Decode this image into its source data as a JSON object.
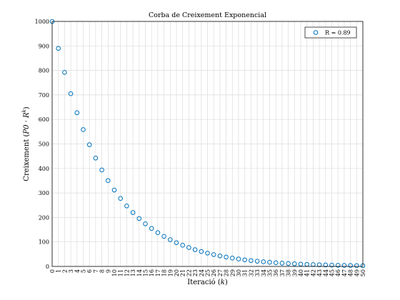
{
  "chart_data": {
    "type": "scatter",
    "title": "Corba de Creixement Exponencial",
    "xlabel_text": "Iteració ",
    "xlabel_var": "k",
    "ylabel_text": "Creixement ",
    "ylabel_formula": "P0 · R",
    "ylabel_sup": "k",
    "xlim": [
      0,
      50
    ],
    "ylim": [
      0,
      1000
    ],
    "yticks": [
      0,
      100,
      200,
      300,
      400,
      500,
      600,
      700,
      800,
      900,
      1000
    ],
    "xtick_step": 1,
    "grid": true,
    "legend": {
      "position": "top-right",
      "label": "R = 0.89"
    },
    "marker": "open-circle",
    "marker_color": "#0072bd",
    "x": [
      0,
      1,
      2,
      3,
      4,
      5,
      6,
      7,
      8,
      9,
      10,
      11,
      12,
      13,
      14,
      15,
      16,
      17,
      18,
      19,
      20,
      21,
      22,
      23,
      24,
      25,
      26,
      27,
      28,
      29,
      30,
      31,
      32,
      33,
      34,
      35,
      36,
      37,
      38,
      39,
      40,
      41,
      42,
      43,
      44,
      45,
      46,
      47,
      48,
      49,
      50
    ],
    "y": [
      1000,
      890,
      792.1,
      704.97,
      627.42,
      558.4,
      496.98,
      442.31,
      393.66,
      350.36,
      311.8,
      277.5,
      246.98,
      219.81,
      195.63,
      174.11,
      154.96,
      137.91,
      122.74,
      109.24,
      97.22,
      86.53,
      77.01,
      68.54,
      61,
      54.29,
      48.32,
      43,
      38.27,
      34.06,
      30.31,
      26.98,
      24.01,
      21.37,
      19.02,
      16.93,
      15.07,
      13.41,
      11.93,
      10.62,
      9.45,
      8.41,
      7.49,
      6.66,
      5.93,
      5.28,
      4.7,
      4.18,
      3.72,
      3.31,
      2.95
    ]
  }
}
